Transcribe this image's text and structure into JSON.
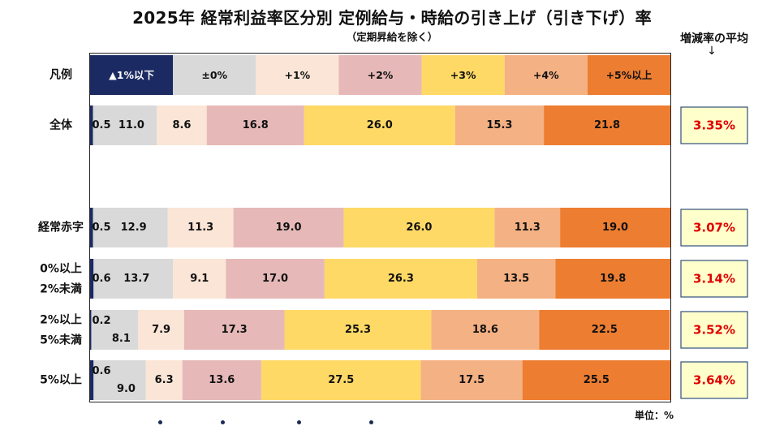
{
  "header": {
    "title": "2025年 経常利益率区分別 定例給与・時給の引き上げ（引き下げ）率",
    "subtitle": "（定期昇給を除く）",
    "avg_label": "増減率の平均",
    "avg_arrow": "↓",
    "unit_label": "単位：%"
  },
  "colors": {
    "neg": "#1b2a62",
    "zero": "#d9d9d9",
    "p1": "#fbe5d6",
    "p2": "#e6b9b8",
    "p3": "#ffd966",
    "p4": "#f4b183",
    "p5": "#ed7d31",
    "avg_box_bg": "#ffffcc",
    "avg_text": "#e00000"
  },
  "chart_data": {
    "type": "bar",
    "orientation": "horizontal",
    "stacked": true,
    "title": "2025年 経常利益率区分別 定例給与・時給の引き上げ（引き下げ）率",
    "subtitle": "（定期昇給を除く）",
    "unit": "単位：%",
    "legend_row_label": "凡例",
    "legend": [
      "▲1%以下",
      "±0%",
      "+1%",
      "+2%",
      "+3%",
      "+4%",
      "+5%以上"
    ],
    "categories": [
      [
        "全体"
      ],
      [
        "経常赤字"
      ],
      [
        "0%以上",
        "2%未満"
      ],
      [
        "2%以上",
        "5%未満"
      ],
      [
        "5%以上"
      ]
    ],
    "series": [
      {
        "name": "▲1%以下",
        "values": [
          0.5,
          0.5,
          0.6,
          0.2,
          0.6
        ]
      },
      {
        "name": "±0%",
        "values": [
          11.0,
          12.9,
          13.7,
          8.1,
          9.0
        ]
      },
      {
        "name": "+1%",
        "values": [
          8.6,
          11.3,
          9.1,
          7.9,
          6.3
        ]
      },
      {
        "name": "+2%",
        "values": [
          16.8,
          19.0,
          17.0,
          17.3,
          13.6
        ]
      },
      {
        "name": "+3%",
        "values": [
          26.0,
          26.0,
          26.3,
          25.3,
          27.5
        ]
      },
      {
        "name": "+4%",
        "values": [
          15.3,
          11.3,
          13.5,
          18.6,
          17.5
        ]
      },
      {
        "name": "+5%以上",
        "values": [
          21.8,
          19.0,
          19.8,
          22.5,
          25.5
        ]
      }
    ],
    "value_labels": [
      [
        "0.5",
        "11.0",
        "8.6",
        "16.8",
        "26.0",
        "15.3",
        "21.8"
      ],
      [
        "0.5",
        "12.9",
        "11.3",
        "19.0",
        "26.0",
        "11.3",
        "19.0"
      ],
      [
        "0.6",
        "13.7",
        "9.1",
        "17.0",
        "26.3",
        "13.5",
        "19.8"
      ],
      [
        "0.2",
        "8.1",
        "7.9",
        "17.3",
        "25.3",
        "18.6",
        "22.5"
      ],
      [
        "0.6",
        "9.0",
        "6.3",
        "13.6",
        "27.5",
        "17.5",
        "25.5"
      ]
    ],
    "averages": [
      "3.35%",
      "3.07%",
      "3.14%",
      "3.52%",
      "3.64%"
    ],
    "xlim": [
      0,
      100
    ],
    "grid": false
  }
}
